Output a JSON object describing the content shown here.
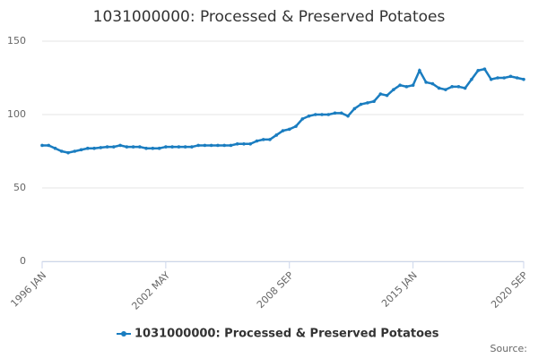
{
  "chart_data": {
    "type": "line",
    "title": "1031000000: Processed & Preserved Potatoes",
    "source": "Source:",
    "categories": [
      "1996 JAN",
      null,
      null,
      null,
      null,
      null,
      null,
      null,
      null,
      null,
      null,
      null,
      null,
      null,
      null,
      null,
      null,
      null,
      null,
      "2002 MAY",
      null,
      null,
      null,
      null,
      null,
      null,
      null,
      null,
      null,
      null,
      null,
      null,
      null,
      null,
      null,
      null,
      null,
      null,
      "2008 SEP",
      null,
      null,
      null,
      null,
      null,
      null,
      null,
      null,
      null,
      null,
      null,
      null,
      null,
      null,
      null,
      null,
      null,
      null,
      "2015 JAN",
      null,
      null,
      null,
      null,
      null,
      null,
      null,
      null,
      null,
      null,
      null,
      null,
      null,
      null,
      null,
      null,
      "2020 SEP"
    ],
    "series": [
      {
        "name": "1031000000: Processed & Preserved Potatoes",
        "color": "#1a7dc0",
        "values": [
          79,
          79,
          77,
          75,
          74,
          75,
          76,
          77,
          77,
          77.5,
          78,
          78,
          79,
          78,
          78,
          78,
          77,
          77,
          77,
          78,
          78,
          78,
          78,
          78,
          79,
          79,
          79,
          79,
          79,
          79,
          80,
          80,
          80,
          82,
          83,
          83,
          86,
          89,
          90,
          92,
          97,
          99,
          100,
          100,
          100,
          101,
          101,
          99,
          104,
          107,
          108,
          109,
          114,
          113,
          117,
          120,
          119,
          120,
          130,
          122,
          121,
          118,
          117,
          119,
          119,
          118,
          124,
          130,
          131,
          124,
          125,
          125,
          126,
          125,
          124
        ]
      }
    ],
    "ylim": [
      0,
      150
    ],
    "yticks": [
      0,
      50,
      100,
      150
    ],
    "grid": true
  }
}
